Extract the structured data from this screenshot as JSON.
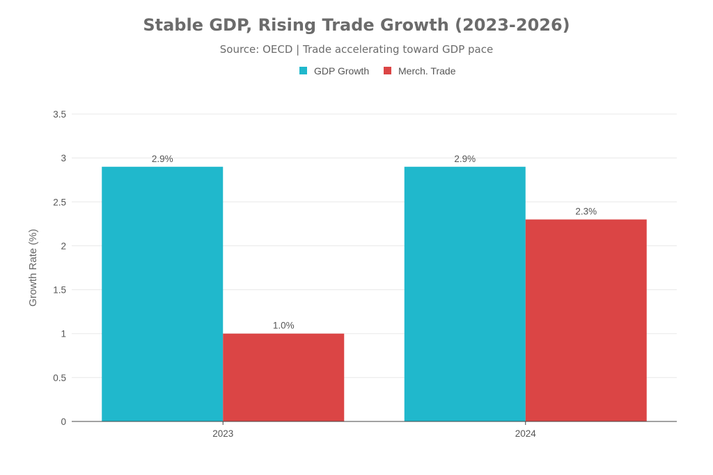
{
  "chart_data": {
    "type": "bar",
    "title": "Stable GDP, Rising Trade Growth (2023-2026)",
    "subtitle": "Source: OECD | Trade accelerating toward GDP pace",
    "categories": [
      "2023",
      "2024"
    ],
    "series": [
      {
        "name": "GDP Growth",
        "values": [
          2.9,
          2.9
        ],
        "labels": [
          "2.9%",
          "2.9%"
        ],
        "color": "#20b8cc"
      },
      {
        "name": "Merch. Trade",
        "values": [
          1.0,
          2.3
        ],
        "labels": [
          "1.0%",
          "2.3%"
        ],
        "color": "#db4545"
      }
    ],
    "xlabel": "",
    "ylabel": "Growth Rate (%)",
    "ylim": [
      0,
      3.5
    ],
    "yticks": [
      "0",
      "0.5",
      "1",
      "1.5",
      "2",
      "2.5",
      "3",
      "3.5"
    ],
    "grid": true,
    "legend": "top-center"
  }
}
